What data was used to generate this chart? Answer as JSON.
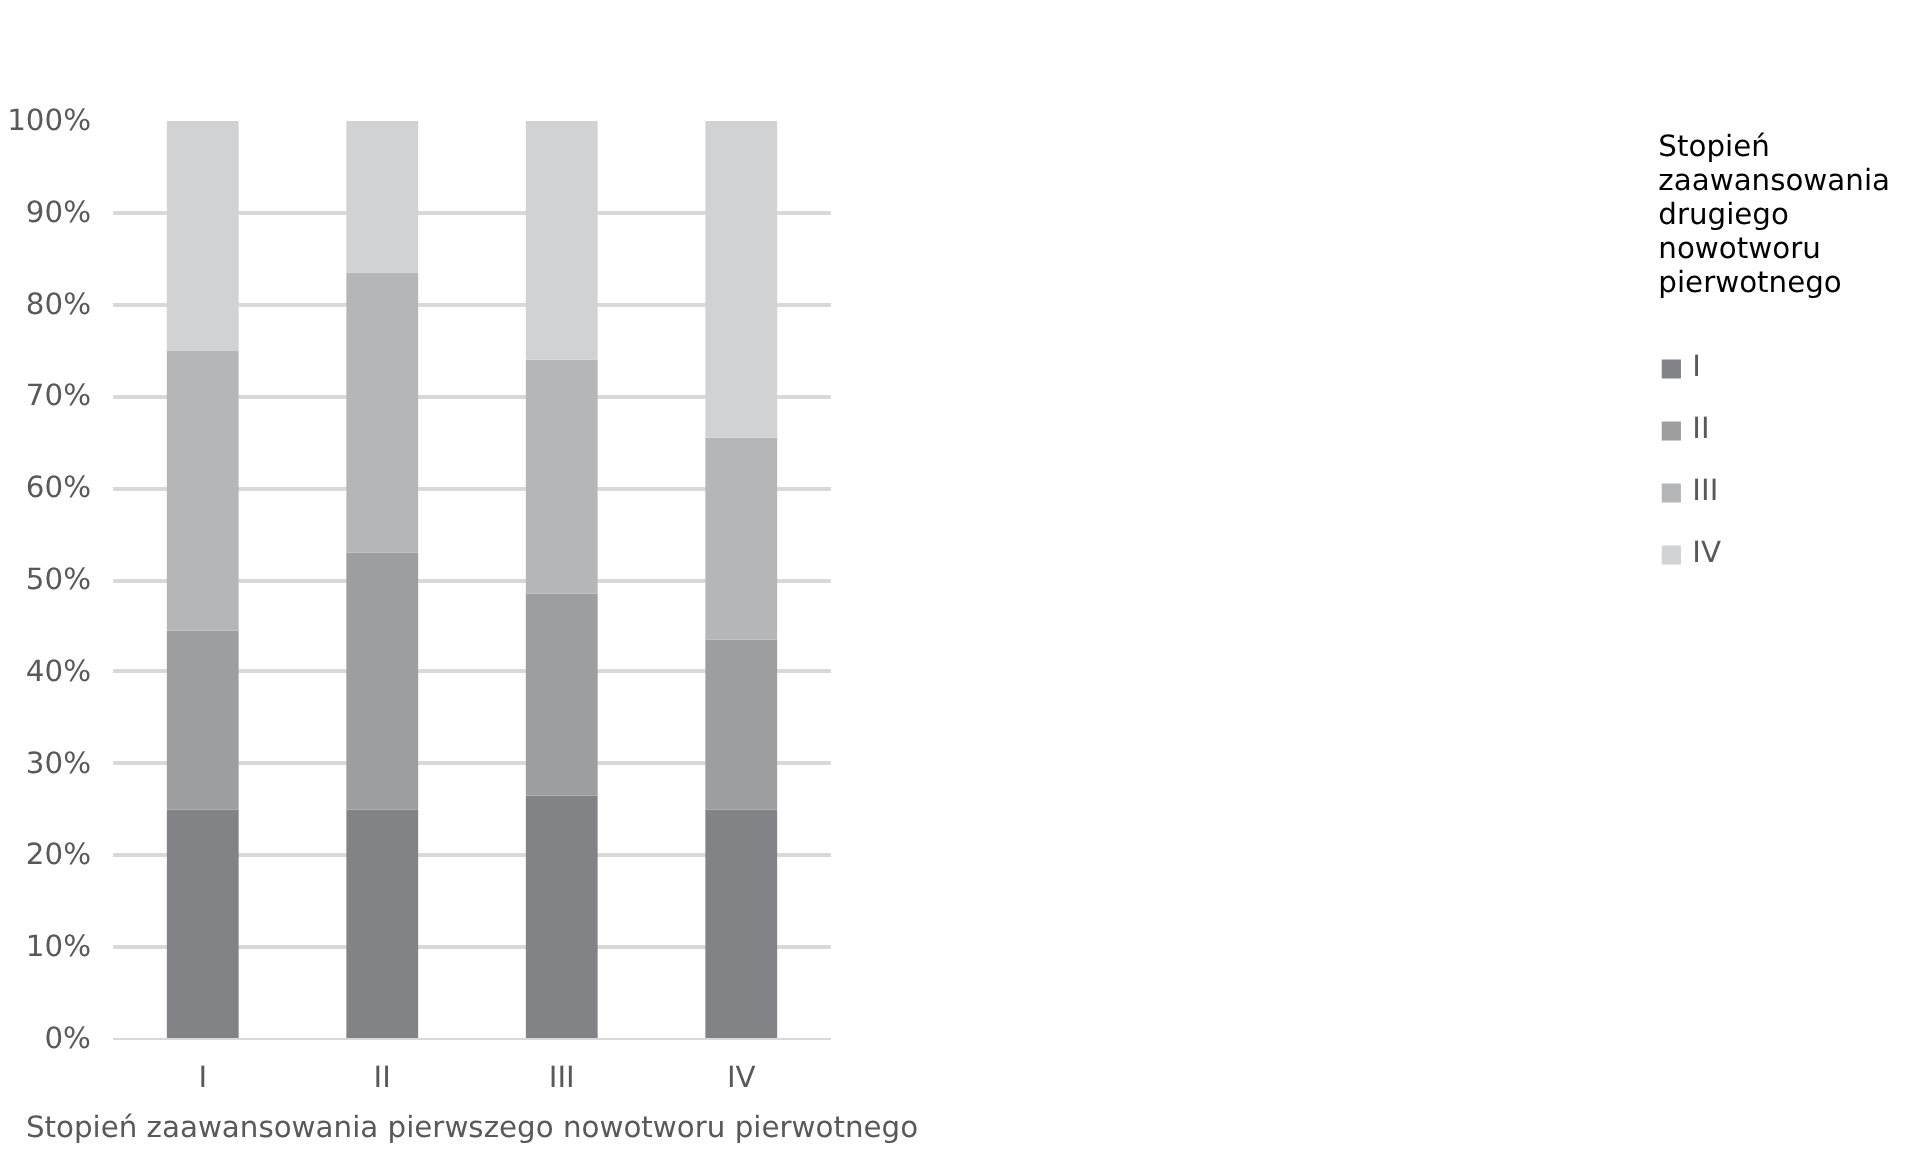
{
  "chart_data": {
    "type": "bar",
    "stacked": true,
    "xlabel": "Stopień zaawansowania pierwszego nowotworu pierwotnego",
    "legend_title": "Stopień zaawansowania drugiego nowotworu pierwotnego",
    "categories": [
      "I",
      "II",
      "III",
      "IV"
    ],
    "series": [
      {
        "name": "I",
        "color": "#828386",
        "values": [
          25,
          25,
          26.5,
          25
        ]
      },
      {
        "name": "II",
        "color": "#9d9ea0",
        "values": [
          19.5,
          28,
          22,
          18.5
        ]
      },
      {
        "name": "III",
        "color": "#b5b6b8",
        "values": [
          30.5,
          30.5,
          25.5,
          22
        ]
      },
      {
        "name": "IV",
        "color": "#d1d2d4",
        "values": [
          25,
          16.5,
          26,
          34.5
        ]
      }
    ],
    "ylim": [
      0,
      100
    ],
    "yticks": [
      {
        "value": 0,
        "label": "0%"
      },
      {
        "value": 10,
        "label": "10%"
      },
      {
        "value": 20,
        "label": "20%"
      },
      {
        "value": 30,
        "label": "30%"
      },
      {
        "value": 40,
        "label": "40%"
      },
      {
        "value": 50,
        "label": "50%"
      },
      {
        "value": 60,
        "label": "60%"
      },
      {
        "value": 70,
        "label": "70%"
      },
      {
        "value": 80,
        "label": "80%"
      },
      {
        "value": 90,
        "label": "90%"
      },
      {
        "value": 100,
        "label": "100%"
      }
    ],
    "grid": "y",
    "legend": "right"
  }
}
